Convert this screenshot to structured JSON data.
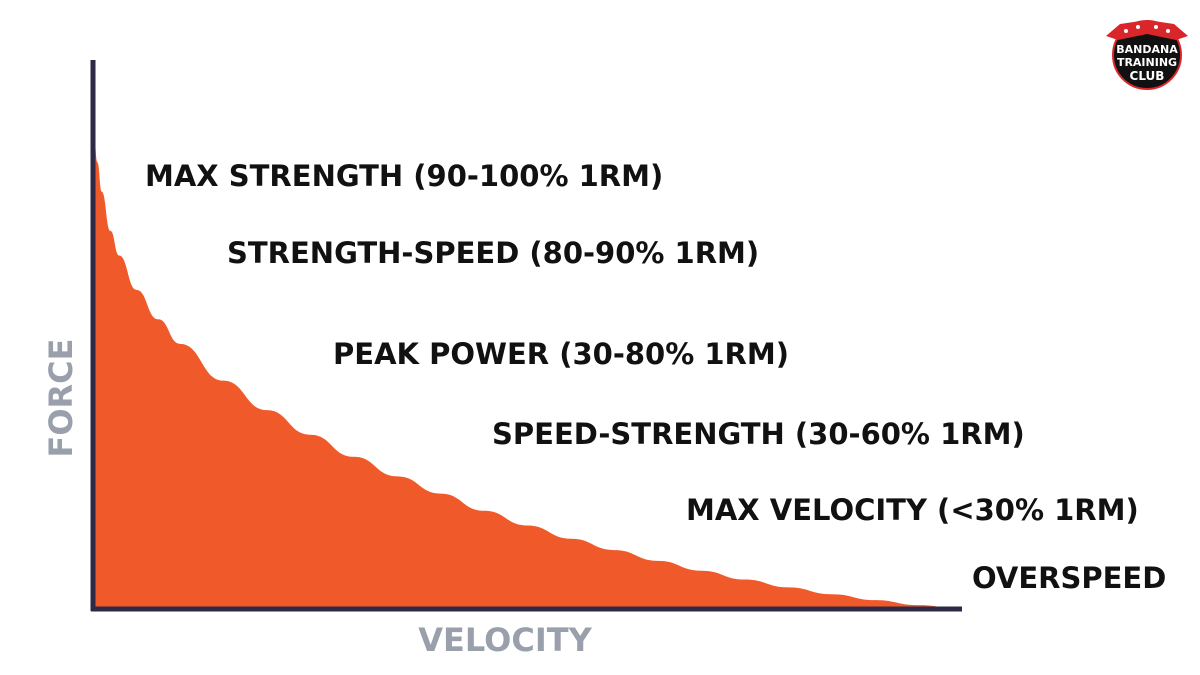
{
  "chart_data": {
    "type": "area",
    "title": "",
    "xlabel": "VELOCITY",
    "ylabel": "FORCE",
    "x": [
      0,
      0.5,
      1,
      2,
      3,
      5,
      7.5,
      10,
      15,
      20,
      25,
      30,
      35,
      40,
      45,
      50,
      55,
      60,
      65,
      70,
      75,
      80,
      85,
      90,
      95,
      100
    ],
    "y": [
      100,
      91,
      85,
      77,
      72,
      65,
      59,
      54,
      46.5,
      40.5,
      35.5,
      31,
      27,
      23.5,
      20,
      17,
      14.3,
      12,
      9.8,
      7.8,
      6,
      4.4,
      3,
      1.8,
      0.8,
      0
    ],
    "xlim": [
      0,
      100
    ],
    "ylim": [
      0,
      100
    ],
    "grid": false,
    "legend": "none",
    "annotations": [
      {
        "text": "MAX STRENGTH (90-100% 1RM)"
      },
      {
        "text": "STRENGTH-SPEED (80-90% 1RM)"
      },
      {
        "text": "PEAK POWER (30-80% 1RM)"
      },
      {
        "text": "SPEED-STRENGTH (30-60% 1RM)"
      },
      {
        "text": "MAX VELOCITY (<30% 1RM)"
      },
      {
        "text": "OVERSPEED"
      }
    ],
    "colors": {
      "fill": "#f05a2a",
      "axis": "#2d2a45",
      "axis_title": "#9aa0ab",
      "annotation": "#111111"
    }
  },
  "logo": {
    "line1": "BANDANA",
    "line2": "TRAINING",
    "line3": "CLUB",
    "colors": {
      "bg": "#111111",
      "accent": "#d9262b",
      "text": "#ffffff"
    }
  }
}
